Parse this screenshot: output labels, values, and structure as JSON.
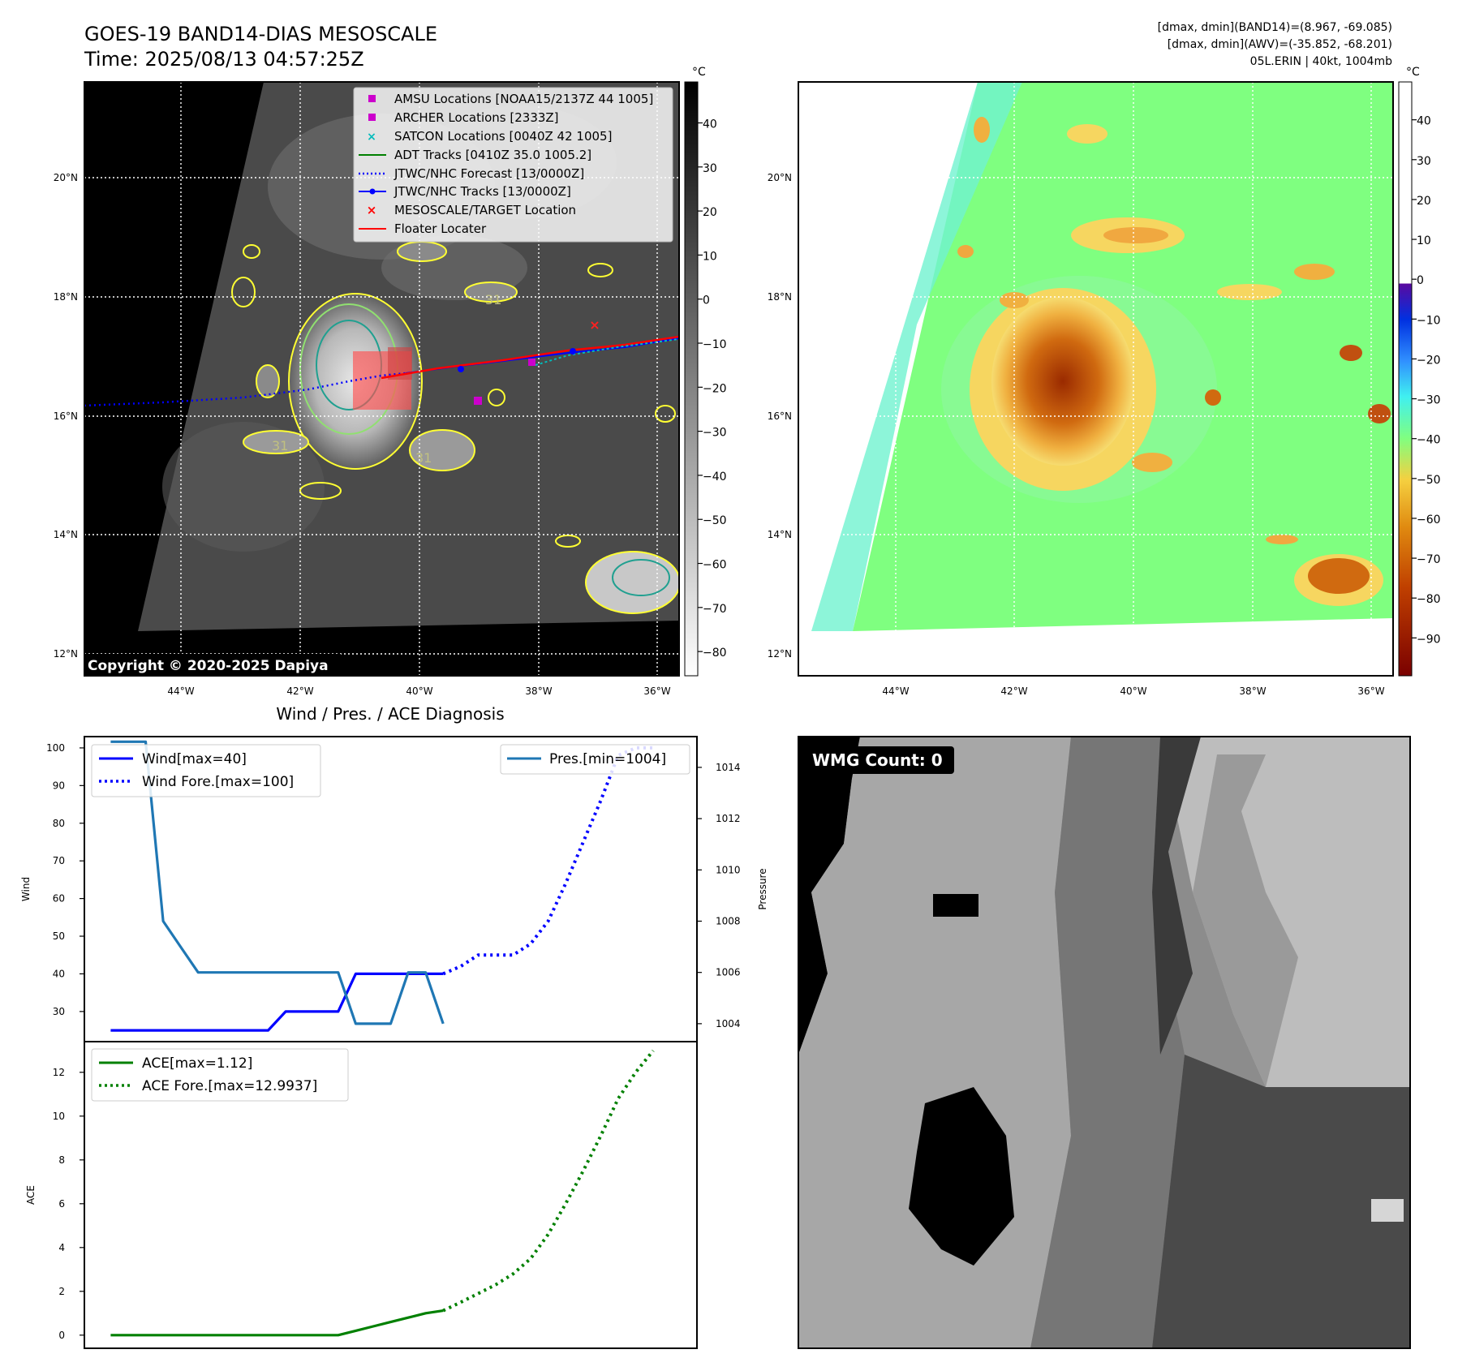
{
  "header": {
    "title_line1": "GOES-19 BAND14-DIAS MESOSCALE",
    "title_line2": "Time: 2025/08/13 04:57:25Z",
    "info_line1": "[dmax, dmin](BAND14)=(8.967, -69.085)",
    "info_line2": "[dmax, dmin](AWV)=(-35.852, -68.201)",
    "info_line3": "05L.ERIN | 40kt, 1004mb"
  },
  "map_axes": {
    "lat_labels": [
      "20°N",
      "18°N",
      "16°N",
      "14°N",
      "12°N"
    ],
    "lon_labels": [
      "44°W",
      "42°W",
      "40°W",
      "38°W",
      "36°W"
    ]
  },
  "ir_panel": {
    "copyright": "Copyright © 2020-2025 Dapiya",
    "colorbar_unit": "°C",
    "colorbar_ticks": [
      "40",
      "30",
      "20",
      "10",
      "0",
      "−10",
      "−20",
      "−30",
      "−40",
      "−50",
      "−60",
      "−70",
      "−80"
    ],
    "contour_labels": [
      "31",
      "31",
      "31"
    ],
    "legend": [
      {
        "label": "AMSU Locations [NOAA15/2137Z 44 1005]",
        "color": "#cc00cc",
        "marker": "square"
      },
      {
        "label": "ARCHER Locations [2333Z]",
        "color": "#cc00cc",
        "marker": "square"
      },
      {
        "label": "SATCON Locations [0040Z 42 1005]",
        "color": "#00bbbb",
        "marker": "x"
      },
      {
        "label": "ADT Tracks [0410Z 35.0 1005.2]",
        "color": "#008000",
        "marker": "line"
      },
      {
        "label": "JTWC/NHC Forecast [13/0000Z]",
        "color": "#0000ff",
        "marker": "dotted"
      },
      {
        "label": "JTWC/NHC Tracks [13/0000Z]",
        "color": "#0000ff",
        "marker": "line-dot"
      },
      {
        "label": "MESOSCALE/TARGET Location",
        "color": "#ff0000",
        "marker": "x"
      },
      {
        "label": "Floater Locater",
        "color": "#ff0000",
        "marker": "line"
      }
    ]
  },
  "wv_panel": {
    "colorbar_unit": "°C",
    "colorbar_ticks": [
      "40",
      "30",
      "20",
      "10",
      "0",
      "−10",
      "−20",
      "−30",
      "−40",
      "−50",
      "−60",
      "−70",
      "−80",
      "−90"
    ]
  },
  "diag_panel": {
    "title": "Wind / Pres. / ACE Diagnosis",
    "wind_ylabel": "Wind",
    "pres_ylabel": "Pressure",
    "ace_ylabel": "ACE",
    "wind_ticks": [
      "100",
      "90",
      "80",
      "70",
      "60",
      "50",
      "40",
      "30"
    ],
    "pres_ticks": [
      "1014",
      "1012",
      "1010",
      "1008",
      "1006",
      "1004"
    ],
    "ace_ticks": [
      "12",
      "10",
      "8",
      "6",
      "4",
      "2",
      "0"
    ],
    "legend_wind": "Wind[max=40]",
    "legend_wind_fore": "Wind Fore.[max=100]",
    "legend_pres": "Pres.[min=1004]",
    "legend_ace": "ACE[max=1.12]",
    "legend_ace_fore": "ACE Fore.[max=12.9937]",
    "wmg_label": "WMG Count: 0"
  },
  "colors": {
    "wind": "#0000ff",
    "pressure": "#1f77b4",
    "ace": "#008000"
  },
  "chart_data": [
    {
      "type": "line",
      "name": "wind",
      "ylim": [
        22,
        103
      ],
      "series": [
        {
          "name": "Wind[max=40]",
          "x": [
            0,
            1,
            2,
            3,
            4,
            5,
            6,
            7,
            8,
            9,
            10,
            11,
            12,
            13,
            14,
            15,
            16,
            17,
            18,
            19
          ],
          "values": [
            25,
            25,
            25,
            25,
            25,
            25,
            25,
            25,
            25,
            25,
            30,
            30,
            30,
            30,
            40,
            40,
            40,
            40,
            40,
            40
          ]
        },
        {
          "name": "Wind Fore.[max=100]",
          "x": [
            19,
            20,
            21,
            22,
            23,
            24,
            25,
            26,
            27,
            28,
            29,
            30,
            31
          ],
          "values": [
            40,
            42,
            45,
            45,
            45,
            48,
            54,
            64,
            75,
            86,
            98,
            100,
            100
          ]
        }
      ]
    },
    {
      "type": "line",
      "name": "pressure",
      "ylim": [
        1003.3,
        1015.2
      ],
      "series": [
        {
          "name": "Pres.[min=1004]",
          "x": [
            0,
            1,
            2,
            3,
            4,
            5,
            6,
            7,
            8,
            9,
            10,
            11,
            12,
            13,
            14,
            15,
            16,
            17,
            18,
            19
          ],
          "values": [
            1015,
            1015,
            1015,
            1008,
            1007,
            1006,
            1006,
            1006,
            1006,
            1006,
            1006,
            1006,
            1006,
            1006,
            1004,
            1004,
            1004,
            1006,
            1006,
            1004
          ]
        }
      ]
    },
    {
      "type": "line",
      "name": "ace",
      "ylim": [
        -0.6,
        13.4
      ],
      "series": [
        {
          "name": "ACE[max=1.12]",
          "x": [
            0,
            1,
            2,
            3,
            4,
            5,
            6,
            7,
            8,
            9,
            10,
            11,
            12,
            13,
            14,
            15,
            16,
            17,
            18,
            19
          ],
          "values": [
            0,
            0,
            0,
            0,
            0,
            0,
            0,
            0,
            0,
            0,
            0,
            0,
            0,
            0,
            0.2,
            0.4,
            0.6,
            0.8,
            1.0,
            1.12
          ]
        },
        {
          "name": "ACE Fore.[max=12.9937]",
          "x": [
            19,
            20,
            21,
            22,
            23,
            24,
            25,
            26,
            27,
            28,
            29,
            30,
            31
          ],
          "values": [
            1.12,
            1.5,
            1.9,
            2.3,
            2.8,
            3.5,
            4.6,
            6.0,
            7.5,
            9.1,
            10.8,
            12.0,
            12.99
          ]
        }
      ]
    }
  ]
}
